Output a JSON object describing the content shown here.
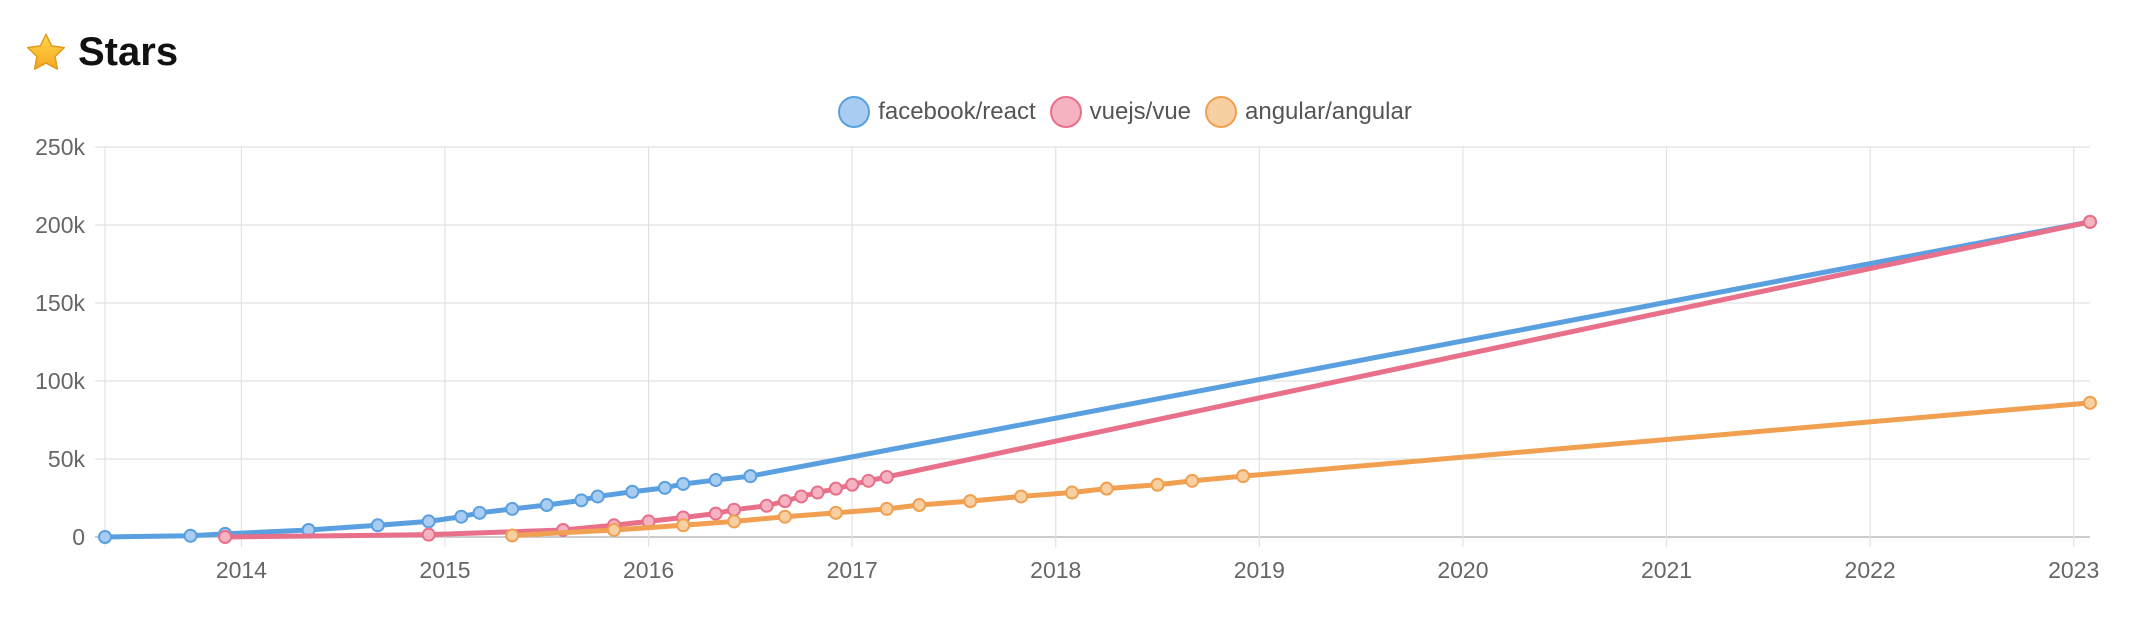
{
  "header": {
    "title": "Stars",
    "icon": "star-icon"
  },
  "chart_data": {
    "type": "line",
    "title": "Stars",
    "xlabel": "",
    "ylabel": "",
    "xlim": [
      2013.33,
      2023.08
    ],
    "ylim": [
      0,
      250000
    ],
    "grid": true,
    "legend": "top-center",
    "y_ticks": [
      0,
      50000,
      100000,
      150000,
      200000,
      250000
    ],
    "y_tick_labels": [
      "0",
      "50k",
      "100k",
      "150k",
      "200k",
      "250k"
    ],
    "x_ticks": [
      2014,
      2015,
      2016,
      2017,
      2018,
      2019,
      2020,
      2021,
      2022,
      2023
    ],
    "x_tick_labels": [
      "2014",
      "2015",
      "2016",
      "2017",
      "2018",
      "2019",
      "2020",
      "2021",
      "2022",
      "2023"
    ],
    "series": [
      {
        "name": "facebook/react",
        "color": "#5aa0e0",
        "fill": "#a9cdf2",
        "points": [
          [
            2013.33,
            0
          ],
          [
            2013.75,
            800
          ],
          [
            2013.92,
            2000
          ],
          [
            2014.33,
            4500
          ],
          [
            2014.67,
            7500
          ],
          [
            2014.92,
            10000
          ],
          [
            2015.08,
            13000
          ],
          [
            2015.17,
            15500
          ],
          [
            2015.33,
            18000
          ],
          [
            2015.5,
            20500
          ],
          [
            2015.67,
            23500
          ],
          [
            2015.75,
            26000
          ],
          [
            2015.92,
            29000
          ],
          [
            2016.08,
            31500
          ],
          [
            2016.17,
            34000
          ],
          [
            2016.33,
            36500
          ],
          [
            2016.5,
            39000
          ],
          [
            2023.08,
            202000
          ]
        ]
      },
      {
        "name": "vuejs/vue",
        "color": "#e8708a",
        "fill": "#f5b3c1",
        "points": [
          [
            2013.92,
            0
          ],
          [
            2014.92,
            1500
          ],
          [
            2015.58,
            4500
          ],
          [
            2015.83,
            7500
          ],
          [
            2016.0,
            10000
          ],
          [
            2016.17,
            12500
          ],
          [
            2016.33,
            15000
          ],
          [
            2016.42,
            17500
          ],
          [
            2016.58,
            20000
          ],
          [
            2016.67,
            23000
          ],
          [
            2016.75,
            26000
          ],
          [
            2016.83,
            28500
          ],
          [
            2016.92,
            31000
          ],
          [
            2017.0,
            33500
          ],
          [
            2017.08,
            36000
          ],
          [
            2017.17,
            38500
          ],
          [
            2023.08,
            202000
          ]
        ]
      },
      {
        "name": "angular/angular",
        "color": "#f0a050",
        "fill": "#f8cfa0",
        "points": [
          [
            2015.33,
            1000
          ],
          [
            2015.83,
            4500
          ],
          [
            2016.17,
            7500
          ],
          [
            2016.42,
            10000
          ],
          [
            2016.67,
            13000
          ],
          [
            2016.92,
            15500
          ],
          [
            2017.17,
            18000
          ],
          [
            2017.33,
            20500
          ],
          [
            2017.58,
            23000
          ],
          [
            2017.83,
            26000
          ],
          [
            2018.08,
            28500
          ],
          [
            2018.25,
            31000
          ],
          [
            2018.5,
            33500
          ],
          [
            2018.67,
            36000
          ],
          [
            2018.92,
            39000
          ],
          [
            2023.08,
            86000
          ]
        ]
      }
    ]
  }
}
